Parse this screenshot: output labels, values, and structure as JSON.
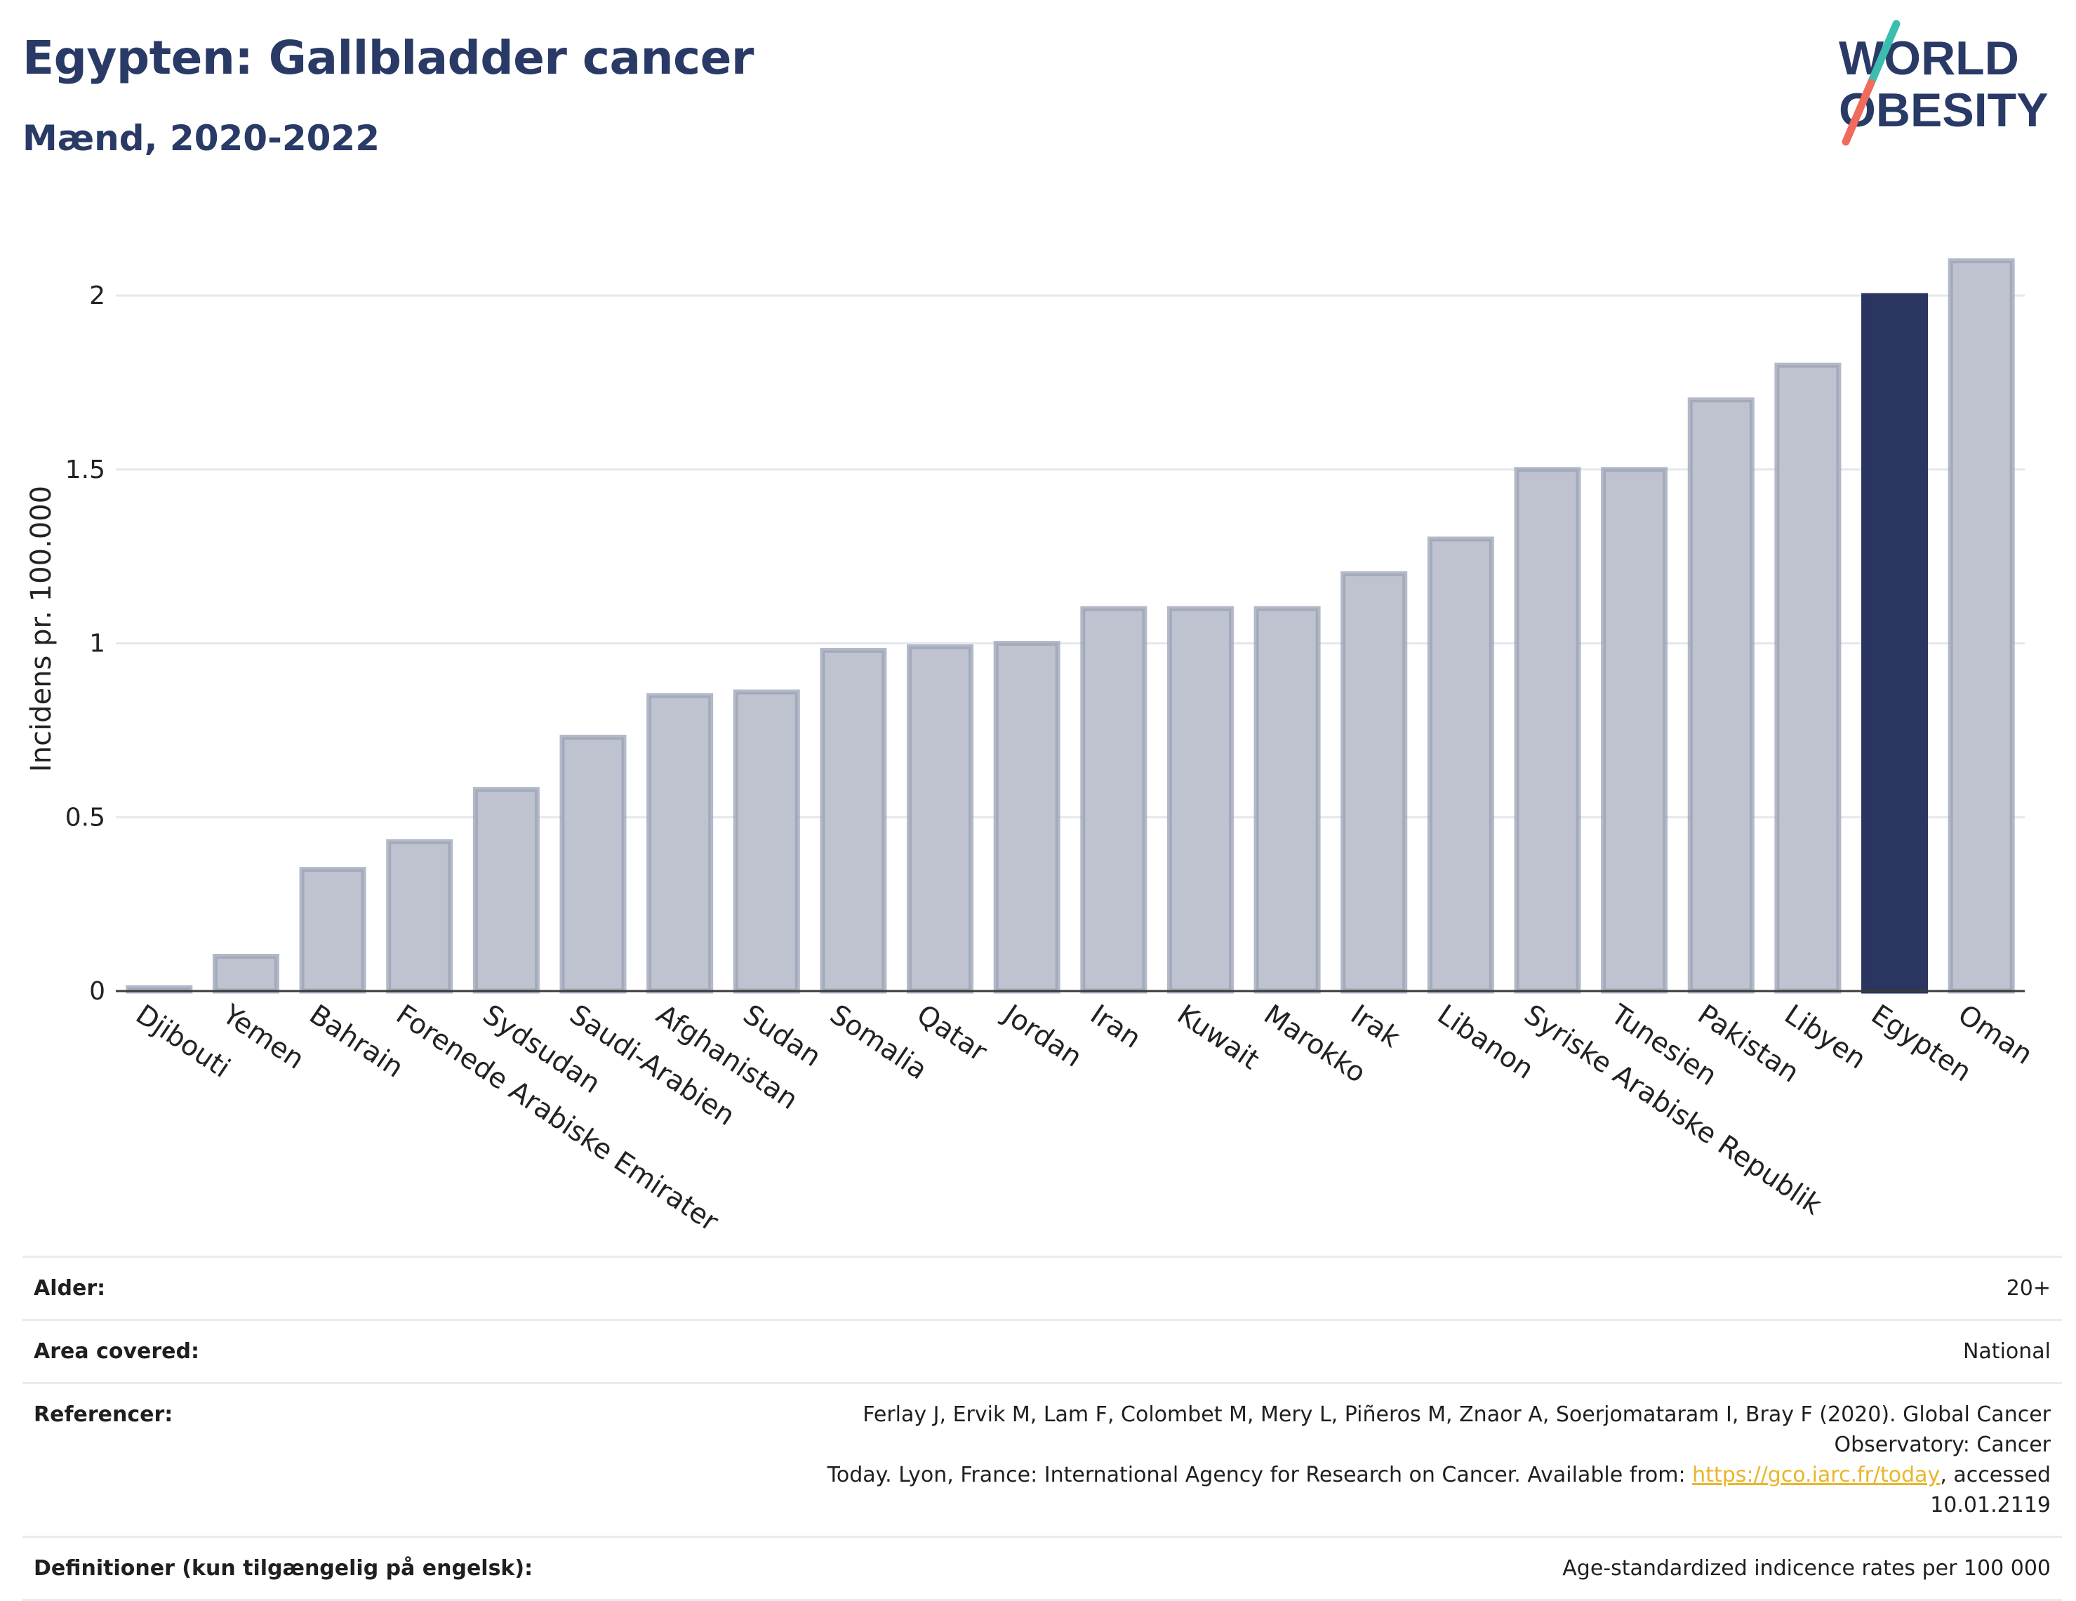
{
  "header": {
    "title": "Egypten: Gallbladder cancer",
    "subtitle": "Mænd, 2020-2022"
  },
  "logo": {
    "line1": "WORLD",
    "line2": "OBESITY",
    "colors": {
      "text": "#2a3a66",
      "slash_top": "#3bbdb0",
      "slash_bottom": "#ef6b5b"
    }
  },
  "chart_data": {
    "type": "bar",
    "categories": [
      "Djibouti",
      "Yemen",
      "Bahrain",
      "Forenede Arabiske Emirater",
      "Sydsudan",
      "Saudi-Arabien",
      "Afghanistan",
      "Sudan",
      "Somalia",
      "Qatar",
      "Jordan",
      "Iran",
      "Kuwait",
      "Marokko",
      "Irak",
      "Libanon",
      "Syriske Arabiske Republik",
      "Tunesien",
      "Pakistan",
      "Libyen",
      "Egypten",
      "Oman"
    ],
    "values": [
      0.01,
      0.1,
      0.35,
      0.43,
      0.58,
      0.73,
      0.85,
      0.86,
      0.98,
      0.99,
      1.0,
      1.1,
      1.1,
      1.1,
      1.2,
      1.3,
      1.5,
      1.5,
      1.7,
      1.8,
      2.0,
      2.1
    ],
    "highlight": "Egypten",
    "ylabel": "Incidens pr. 100.000",
    "xlabel": "",
    "ylim": [
      0,
      2.1
    ],
    "yticks": [
      0,
      0.5,
      1,
      1.5,
      2
    ],
    "ytick_labels": [
      "0",
      "0.5",
      "1",
      "1.5",
      "2"
    ],
    "grid": true,
    "colors": {
      "bar": "#bfc3cf",
      "bar_border": "#9aa1b5",
      "highlight": "#2a3560",
      "axis": "#3b3b3b",
      "grid": "#e5e7ee"
    }
  },
  "info": {
    "alder_label": "Alder:",
    "alder_value": "20+",
    "area_label": "Area covered:",
    "area_value": "National",
    "ref_label": "Referencer:",
    "ref_line1": "Ferlay J, Ervik M, Lam F, Colombet M, Mery L, Piñeros M, Znaor A, Soerjomataram I, Bray F (2020). Global Cancer Observatory: Cancer",
    "ref_line2_pre": "Today. Lyon, France: International Agency for Research on Cancer. Available from: ",
    "ref_link": "https://gco.iarc.fr/today",
    "ref_line2_post": ", accessed 10.01.2119",
    "def_label": "Definitioner (kun tilgængelig på engelsk):",
    "def_value": "Age-standardized indicence rates per 100 000"
  }
}
